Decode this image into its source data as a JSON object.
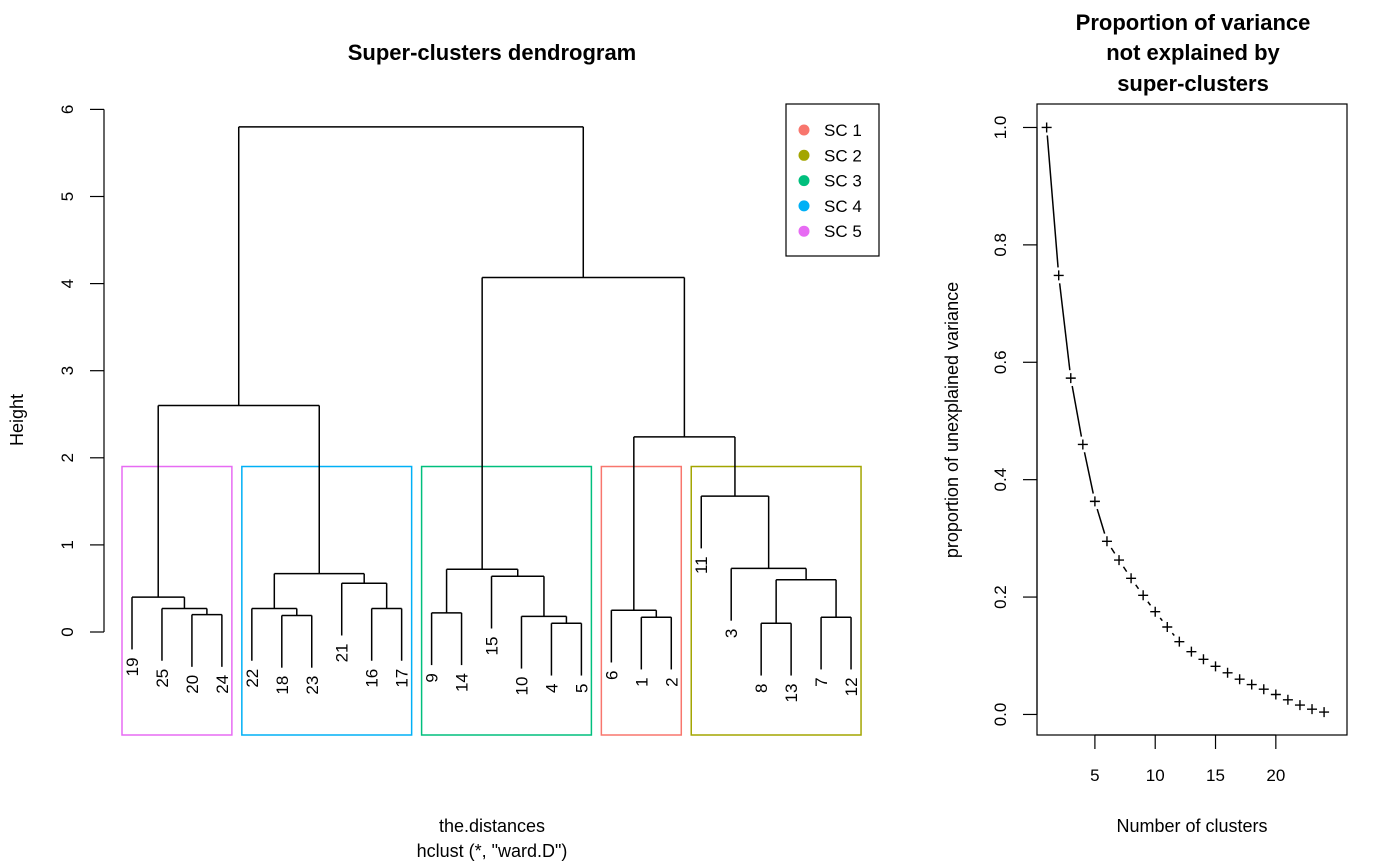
{
  "dendrogram": {
    "title": "Super-clusters dendrogram",
    "ylabel": "Height",
    "xlabel": "the.distances",
    "sublabel": "hclust (*, \"ward.D\")",
    "y_ticks": [
      "0",
      "1",
      "2",
      "3",
      "4",
      "5",
      "6"
    ],
    "leaf_order": [
      "19",
      "25",
      "20",
      "24",
      "22",
      "18",
      "23",
      "21",
      "16",
      "17",
      "9",
      "14",
      "15",
      "10",
      "4",
      "5",
      "6",
      "1",
      "2",
      "11",
      "3",
      "8",
      "13",
      "7",
      "12"
    ],
    "legend": [
      {
        "label": "SC 1",
        "color": "#F8766D"
      },
      {
        "label": "SC 2",
        "color": "#A3A500"
      },
      {
        "label": "SC 3",
        "color": "#00BF7D"
      },
      {
        "label": "SC 4",
        "color": "#00B0F6"
      },
      {
        "label": "SC 5",
        "color": "#E76BF3"
      }
    ]
  },
  "chart_data": [
    {
      "type": "dendrogram",
      "title": "Super-clusters dendrogram",
      "ylabel": "Height",
      "xlabel": "the.distances",
      "subtitle": "hclust (*, \"ward.D\")",
      "ylim": [
        0,
        6
      ],
      "leaf_order": [
        19,
        25,
        20,
        24,
        22,
        18,
        23,
        21,
        16,
        17,
        9,
        14,
        15,
        10,
        4,
        5,
        6,
        1,
        2,
        11,
        3,
        8,
        13,
        7,
        12
      ],
      "merges": [
        {
          "a": [
            20
          ],
          "b": [
            24
          ],
          "height": 0.2
        },
        {
          "a": [
            25
          ],
          "b": [
            20,
            24
          ],
          "height": 0.27
        },
        {
          "a": [
            19
          ],
          "b": [
            25,
            20,
            24
          ],
          "height": 0.4
        },
        {
          "a": [
            22
          ],
          "b": [
            18,
            23
          ],
          "height": 0.27
        },
        {
          "a": [
            18
          ],
          "b": [
            23
          ],
          "height": 0.19
        },
        {
          "a": [
            16
          ],
          "b": [
            17
          ],
          "height": 0.27
        },
        {
          "a": [
            21
          ],
          "b": [
            16,
            17
          ],
          "height": 0.56
        },
        {
          "a": [
            22,
            18,
            23
          ],
          "b": [
            21,
            16,
            17
          ],
          "height": 0.67
        },
        {
          "a": [
            9
          ],
          "b": [
            14
          ],
          "height": 0.22
        },
        {
          "a": [
            4
          ],
          "b": [
            5
          ],
          "height": 0.1
        },
        {
          "a": [
            10
          ],
          "b": [
            4,
            5
          ],
          "height": 0.18
        },
        {
          "a": [
            15
          ],
          "b": [
            10,
            4,
            5
          ],
          "height": 0.64
        },
        {
          "a": [
            9,
            14
          ],
          "b": [
            15,
            10,
            4,
            5
          ],
          "height": 0.72
        },
        {
          "a": [
            1
          ],
          "b": [
            2
          ],
          "height": 0.17
        },
        {
          "a": [
            6
          ],
          "b": [
            1,
            2
          ],
          "height": 0.25
        },
        {
          "a": [
            8
          ],
          "b": [
            13
          ],
          "height": 0.1
        },
        {
          "a": [
            7
          ],
          "b": [
            12
          ],
          "height": 0.17
        },
        {
          "a": [
            8,
            13
          ],
          "b": [
            7,
            12
          ],
          "height": 0.6
        },
        {
          "a": [
            3
          ],
          "b": [
            8,
            13,
            7,
            12
          ],
          "height": 0.73
        },
        {
          "a": [
            11
          ],
          "b": [
            3,
            8,
            13,
            7,
            12
          ],
          "height": 1.56
        },
        {
          "a": [
            6,
            1,
            2
          ],
          "b": [
            11,
            3,
            8,
            13,
            7,
            12
          ],
          "height": 2.24
        },
        {
          "a": [
            9,
            14,
            15,
            10,
            4,
            5
          ],
          "b": [
            6,
            1,
            2,
            11,
            3,
            8,
            13,
            7,
            12
          ],
          "height": 4.07
        },
        {
          "a": [
            19,
            25,
            20,
            24
          ],
          "b": [
            22,
            18,
            23,
            21,
            16,
            17
          ],
          "height": 2.6
        },
        {
          "a": [
            19,
            25,
            20,
            24,
            22,
            18,
            23,
            21,
            16,
            17
          ],
          "b": [
            9,
            14,
            15,
            10,
            4,
            5,
            6,
            1,
            2,
            11,
            3,
            8,
            13,
            7,
            12
          ],
          "height": 5.8
        }
      ],
      "super_clusters": [
        {
          "name": "SC 1",
          "color": "#F8766D",
          "leaves": [
            6,
            1,
            2
          ]
        },
        {
          "name": "SC 2",
          "color": "#A3A500",
          "leaves": [
            11,
            3,
            8,
            13,
            7,
            12
          ]
        },
        {
          "name": "SC 3",
          "color": "#00BF7D",
          "leaves": [
            9,
            14,
            15,
            10,
            4,
            5
          ]
        },
        {
          "name": "SC 4",
          "color": "#00B0F6",
          "leaves": [
            22,
            18,
            23,
            21,
            16,
            17
          ]
        },
        {
          "name": "SC 5",
          "color": "#E76BF3",
          "leaves": [
            19,
            25,
            20,
            24
          ]
        }
      ],
      "cut_height": 1.9,
      "legend_position": "top-right"
    },
    {
      "type": "line",
      "title": "Proportion of variance not explained by super-clusters",
      "xlabel": "Number of clusters",
      "ylabel": "proportion of unexplained variance",
      "x": [
        1,
        2,
        3,
        4,
        5,
        6,
        7,
        8,
        9,
        10,
        11,
        12,
        13,
        14,
        15,
        16,
        17,
        18,
        19,
        20,
        21,
        22,
        23,
        24
      ],
      "y": [
        1.0,
        0.748,
        0.573,
        0.46,
        0.363,
        0.295,
        0.263,
        0.232,
        0.203,
        0.175,
        0.149,
        0.124,
        0.107,
        0.094,
        0.082,
        0.071,
        0.06,
        0.051,
        0.043,
        0.034,
        0.025,
        0.016,
        0.009,
        0.004
      ],
      "x_ticks": [
        5,
        10,
        15,
        20
      ],
      "y_ticks": [
        "0.0",
        "0.2",
        "0.4",
        "0.6",
        "0.8",
        "1.0"
      ],
      "xlim": [
        0.2,
        25.9
      ],
      "ylim": [
        -0.035,
        1.04
      ],
      "markers": "+"
    }
  ],
  "variance_chart": {
    "title_lines": [
      "Proportion of variance",
      "not explained by",
      "super-clusters"
    ]
  }
}
